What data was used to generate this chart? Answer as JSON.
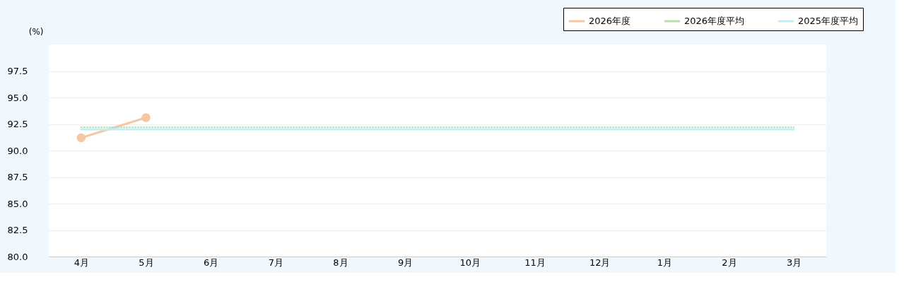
{
  "chart_data": {
    "type": "line",
    "ylabel": "(%)",
    "categories": [
      "4月",
      "5月",
      "6月",
      "7月",
      "8月",
      "9月",
      "10月",
      "11月",
      "12月",
      "1月",
      "2月",
      "3月"
    ],
    "series": [
      {
        "name": "2026年度",
        "color": "#f7c6a3",
        "marker": "circle",
        "line_style": "solid",
        "values": [
          91.2,
          93.1,
          null,
          null,
          null,
          null,
          null,
          null,
          null,
          null,
          null,
          null
        ]
      },
      {
        "name": "2026年度平均",
        "color": "#b9deae",
        "marker": "none",
        "line_style": "dotted",
        "values": [
          92.2,
          92.2,
          92.2,
          92.2,
          92.2,
          92.2,
          92.2,
          92.2,
          92.2,
          92.2,
          92.2,
          92.2
        ]
      },
      {
        "name": "2025年度平均",
        "color": "#c2ecf8",
        "marker": "none",
        "line_style": "solid",
        "values": [
          92.0,
          92.0,
          92.0,
          92.0,
          92.0,
          92.0,
          92.0,
          92.0,
          92.0,
          92.0,
          92.0,
          92.0
        ]
      }
    ],
    "ylim": [
      80,
      100
    ],
    "yticks": [
      {
        "value": 80,
        "label": "80.0"
      },
      82.5,
      {
        "value": 85,
        "label": "85.0"
      },
      87.5,
      {
        "value": 90,
        "label": "90.0"
      },
      92.5,
      {
        "value": 95,
        "label": "95.0"
      },
      97.5
    ],
    "grid": "y",
    "legend": "top right"
  }
}
